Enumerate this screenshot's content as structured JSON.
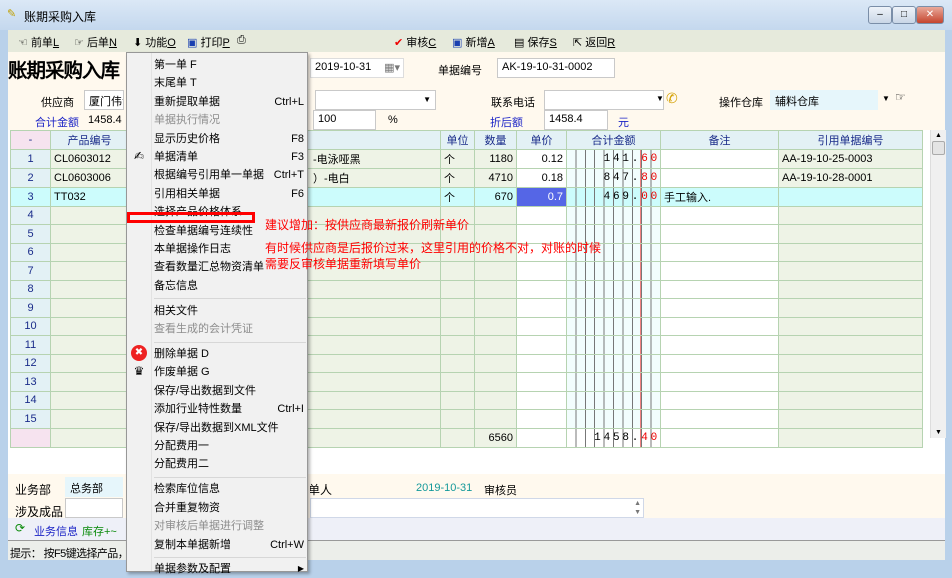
{
  "window": {
    "title": "账期采购入库",
    "controls": [
      "minimize",
      "maximize",
      "close"
    ]
  },
  "toolbar": {
    "prev": "前单",
    "prev_key": "L",
    "next": "后单",
    "next_key": "N",
    "func": "功能",
    "func_key": "O",
    "print": "打印",
    "print_key": "P",
    "audit": "审核",
    "audit_key": "C",
    "add": "新增",
    "add_key": "A",
    "save": "保存",
    "save_key": "S",
    "back": "返回",
    "back_key": "R"
  },
  "form": {
    "heading": "账期采购入库",
    "date": "2019-10-31",
    "doc_no_label": "单据编号",
    "doc_no": "AK-19-10-31-0002",
    "supplier_label": "供应商",
    "supplier": "厦门伟戈",
    "phone_label": "联系电话",
    "phone": "",
    "warehouse_label": "操作仓库",
    "warehouse": "辅料仓库",
    "total_label": "合计金额",
    "total": "1458.4",
    "discount": "100",
    "percent": "%",
    "after_discount_label": "折后额",
    "after_discount": "1458.4",
    "yuan": "元"
  },
  "grid": {
    "headers": [
      "-",
      "产品编号",
      "单位",
      "数量",
      "单价",
      "合计金额",
      "备注",
      "引用单据编号"
    ],
    "rows": [
      {
        "no": "1",
        "code": "CL0603012",
        "name": "-电泳哑黑",
        "unit": "个",
        "qty": "1180",
        "price": "0.12",
        "amount": "141.60",
        "remark": "",
        "ref": "AA-19-10-25-0003"
      },
      {
        "no": "2",
        "code": "CL0603006",
        "name": "）-电白",
        "unit": "个",
        "qty": "4710",
        "price": "0.18",
        "amount": "847.80",
        "remark": "",
        "ref": "AA-19-10-28-0001"
      },
      {
        "no": "3",
        "code": "TT032",
        "name": "",
        "unit": "个",
        "qty": "670",
        "price": "0.7",
        "amount": "469.00",
        "remark": "手工输入.",
        "ref": ""
      },
      {
        "no": "4"
      },
      {
        "no": "5"
      },
      {
        "no": "6"
      },
      {
        "no": "7"
      },
      {
        "no": "8"
      },
      {
        "no": "9"
      },
      {
        "no": "10"
      },
      {
        "no": "11"
      },
      {
        "no": "12"
      },
      {
        "no": "13"
      },
      {
        "no": "14"
      },
      {
        "no": "15"
      }
    ],
    "total_qty": "6560",
    "total_amount": "1458.40"
  },
  "bottom": {
    "dept_label": "业务部",
    "dept": "总务部",
    "product_label": "涉及成品",
    "maker_label": "制单人",
    "maker_date": "2019-10-31",
    "auditor_label": "审核员",
    "info_link": "业务信息",
    "stock_link": "库存+~",
    "status": "提示： 按F5键选择产品，"
  },
  "menu": {
    "items": [
      {
        "label": "第一单 F"
      },
      {
        "label": "末尾单 T"
      },
      {
        "label": "重新提取单据",
        "shortcut": "Ctrl+L"
      },
      {
        "label": "单据执行情况",
        "disabled": true
      },
      {
        "label": "显示历史价格",
        "shortcut": "F8"
      },
      {
        "label": "单据清单",
        "shortcut": "F3",
        "icon": "pen-icon"
      },
      {
        "label": "根据编号引用单一单据",
        "shortcut": "Ctrl+T"
      },
      {
        "label": "引用相关单据",
        "shortcut": "F6"
      },
      {
        "label": "选择产品价格体系"
      },
      {
        "label": "检查单据编号连续性"
      },
      {
        "label": "本单据操作日志"
      },
      {
        "label": "查看数量汇总物资清单"
      },
      {
        "label": "备忘信息"
      },
      {
        "sep": true
      },
      {
        "label": "相关文件"
      },
      {
        "label": "查看生成的会计凭证",
        "disabled": true
      },
      {
        "sep": true
      },
      {
        "label": "删除单据  D",
        "icon": "delete-icon"
      },
      {
        "label": "作废单据  G",
        "icon": "void-icon"
      },
      {
        "label": "保存/导出数据到文件"
      },
      {
        "label": "添加行业特性数量",
        "shortcut": "Ctrl+I"
      },
      {
        "label": "保存/导出数据到XML文件"
      },
      {
        "label": "分配费用一"
      },
      {
        "label": "分配费用二"
      },
      {
        "sep": true
      },
      {
        "label": "检索库位信息"
      },
      {
        "label": "合并重复物资"
      },
      {
        "label": "对审核后单据进行调整",
        "disabled": true
      },
      {
        "label": "复制本单据新增",
        "shortcut": "Ctrl+W"
      },
      {
        "sep": true
      },
      {
        "label": "单据参数及配置",
        "submenu": true
      }
    ]
  },
  "annotations": {
    "suggestion": "建议增加：按供应商最新报价刷新单价",
    "reason_line1": "有时候供应商是后报价过来，这里引用的价格不对，对账的时候",
    "reason_line2": "需要反审核单据重新填写单价",
    "highlight_color": "#ff0000"
  }
}
